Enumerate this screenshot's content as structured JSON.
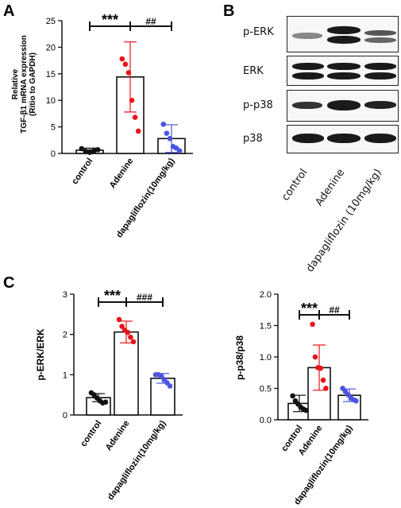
{
  "panel_letters": [
    "A",
    "B",
    "C"
  ],
  "western_blot": {
    "rows": [
      "p-ERK",
      "ERK",
      "p-p38",
      "p38"
    ],
    "lanes": [
      "control",
      "Adenine",
      "dapagliflozin (10mg/kg)"
    ]
  },
  "chart_data": [
    {
      "type": "bar",
      "panel": "A",
      "title": "",
      "xlabel": "",
      "ylabel_lines": [
        "Relative",
        "TGF-β1 mRNA expression",
        "(Ritio to GAPDH)"
      ],
      "categories": [
        "control",
        "Adenine",
        "dapagliflozin(10mg/kg)"
      ],
      "values": [
        0.6,
        14.4,
        2.8
      ],
      "error": [
        0.4,
        6.6,
        2.6
      ],
      "points": [
        [
          0.9,
          0.4,
          0.2,
          0.5,
          0.7
        ],
        [
          17.8,
          16.8,
          15.2,
          10.0,
          6.8,
          4.2
        ],
        [
          5.5,
          3.8,
          2.8,
          1.3,
          1.0,
          0.5
        ]
      ],
      "point_colors": [
        "#111111",
        "#e8141b",
        "#4b54e0"
      ],
      "ylim": [
        0,
        25
      ],
      "yticks": [
        0,
        5,
        10,
        15,
        20,
        25
      ],
      "annotations": [
        {
          "text": "***",
          "from": 0,
          "to": 1
        },
        {
          "text": "##",
          "from": 1,
          "to": 2
        }
      ]
    },
    {
      "type": "bar",
      "panel": "C-left",
      "title": "",
      "xlabel": "",
      "ylabel": "p-ERK/ERK",
      "categories": [
        "control",
        "Adenine",
        "dapagliflozin(10mg/kg)"
      ],
      "values": [
        0.43,
        2.06,
        0.91
      ],
      "error": [
        0.1,
        0.27,
        0.12
      ],
      "points": [
        [
          0.55,
          0.5,
          0.42,
          0.35,
          0.3,
          0.32
        ],
        [
          2.37,
          2.2,
          2.1,
          2.05,
          1.93,
          1.82
        ],
        [
          1.0,
          1.0,
          0.97,
          0.88,
          0.8,
          0.72
        ]
      ],
      "point_colors": [
        "#111111",
        "#e8141b",
        "#4b54e0"
      ],
      "ylim": [
        0,
        3
      ],
      "yticks": [
        0,
        1,
        2,
        3
      ],
      "annotations": [
        {
          "text": "***",
          "from": 0,
          "to": 1
        },
        {
          "text": "###",
          "from": 1,
          "to": 2
        }
      ]
    },
    {
      "type": "bar",
      "panel": "C-right",
      "title": "",
      "xlabel": "",
      "ylabel": "p-p38/p38",
      "categories": [
        "control",
        "Adenine",
        "dapagliflozin(10mg/kg)"
      ],
      "values": [
        0.26,
        0.83,
        0.39
      ],
      "error": [
        0.13,
        0.36,
        0.1
      ],
      "points": [
        [
          0.38,
          0.3,
          0.25,
          0.2,
          0.17,
          0.15
        ],
        [
          1.52,
          1.0,
          0.83,
          0.82,
          0.63,
          0.5
        ],
        [
          0.5,
          0.45,
          0.4,
          0.35,
          0.32,
          0.3
        ]
      ],
      "point_colors": [
        "#111111",
        "#e8141b",
        "#4b54e0"
      ],
      "ylim": [
        0,
        2.0
      ],
      "yticks": [
        0.0,
        0.5,
        1.0,
        1.5,
        2.0
      ],
      "annotations": [
        {
          "text": "***",
          "from": 0,
          "to": 1
        },
        {
          "text": "##",
          "from": 1,
          "to": 2
        }
      ]
    }
  ]
}
